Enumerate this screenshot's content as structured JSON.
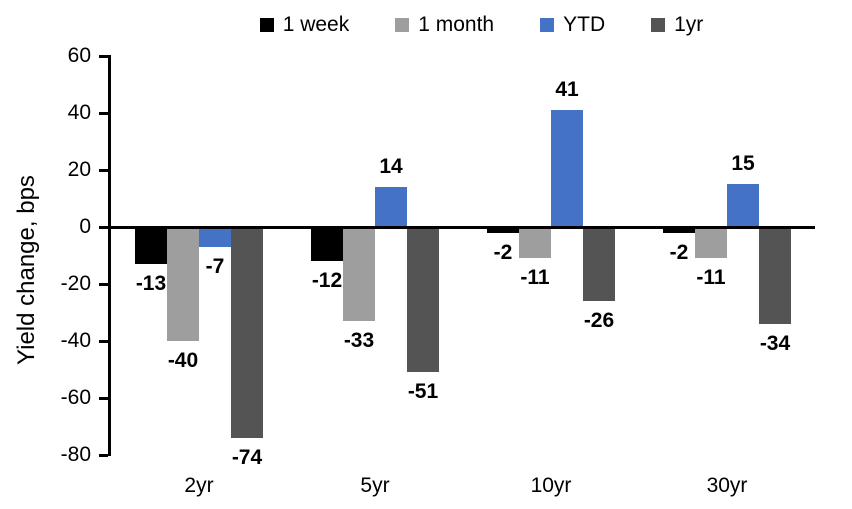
{
  "chart_data": {
    "type": "bar",
    "title": "",
    "xlabel": "",
    "ylabel": "Yield change, bps",
    "categories": [
      "2yr",
      "5yr",
      "10yr",
      "30yr"
    ],
    "series": [
      {
        "name": "1 week",
        "color": "#000000",
        "values": [
          -13,
          -12,
          -2,
          -2
        ]
      },
      {
        "name": "1 month",
        "color": "#9E9E9E",
        "values": [
          -40,
          -33,
          -11,
          -11
        ]
      },
      {
        "name": "YTD",
        "color": "#4472C4",
        "values": [
          -7,
          14,
          41,
          15
        ]
      },
      {
        "name": "1yr",
        "color": "#545454",
        "values": [
          -74,
          -51,
          -26,
          -34
        ]
      }
    ],
    "ylim": [
      -80,
      60
    ],
    "yticks": [
      60,
      40,
      20,
      0,
      -20,
      -40,
      -60,
      -80
    ],
    "grid": false,
    "legend_position": "top",
    "data_labels": true,
    "axis_color": "#000000",
    "background_color": "#ffffff"
  }
}
